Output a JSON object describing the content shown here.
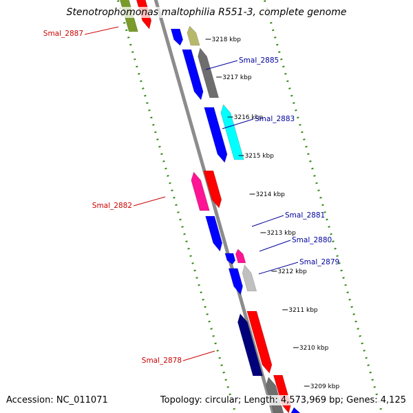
{
  "title": "Stenotrophomonas maltophilia R551-3, complete genome",
  "accession": "Accession: NC_011071",
  "summary": "Topology: circular; Length: 4,573,969 bp; Genes: 4,125",
  "colors": {
    "backbone": "#8c8c8c",
    "dotted_ring": "#2f8a14",
    "label_forward": "#00009c",
    "label_reverse": "#cc0000"
  },
  "ticks": [
    "3218 kbp",
    "3217 kbp",
    "3216 kbp",
    "3215 kbp",
    "3214 kbp",
    "3213 kbp",
    "3212 kbp",
    "3211 kbp",
    "3210 kbp",
    "3209 kbp"
  ],
  "gene_labels": [
    {
      "text": "Smal_2887",
      "strand": "reverse"
    },
    {
      "text": "Smal_2885",
      "strand": "forward"
    },
    {
      "text": "Smal_2883",
      "strand": "forward"
    },
    {
      "text": "Smal_2882",
      "strand": "reverse"
    },
    {
      "text": "Smal_2881",
      "strand": "forward"
    },
    {
      "text": "Smal_2880",
      "strand": "forward"
    },
    {
      "text": "Smal_2879",
      "strand": "forward"
    },
    {
      "text": "Smal_2878",
      "strand": "reverse"
    }
  ],
  "features": [
    {
      "color": "#7a9a2a",
      "strand": "forward"
    },
    {
      "color": "#ff0000",
      "strand": "reverse"
    },
    {
      "color": "#0000ff",
      "strand": "reverse"
    },
    {
      "color": "#b8b86c",
      "strand": "forward"
    },
    {
      "color": "#0000ff",
      "strand": "reverse"
    },
    {
      "color": "#6e6e6e",
      "strand": "forward"
    },
    {
      "color": "#0000ff",
      "strand": "reverse"
    },
    {
      "color": "#00ffff",
      "strand": "forward"
    },
    {
      "color": "#ff1493",
      "strand": "forward"
    },
    {
      "color": "#ff0000",
      "strand": "reverse"
    },
    {
      "color": "#0000ff",
      "strand": "reverse"
    },
    {
      "color": "#0000ff",
      "strand": "reverse"
    },
    {
      "color": "#ff1493",
      "strand": "forward"
    },
    {
      "color": "#0000ff",
      "strand": "reverse"
    },
    {
      "color": "#c0c0c0",
      "strand": "forward"
    },
    {
      "color": "#00007a",
      "strand": "forward"
    },
    {
      "color": "#ff0000",
      "strand": "reverse"
    },
    {
      "color": "#6e6e6e",
      "strand": "forward"
    },
    {
      "color": "#ff0000",
      "strand": "reverse"
    },
    {
      "color": "#0000ff",
      "strand": "forward"
    }
  ]
}
